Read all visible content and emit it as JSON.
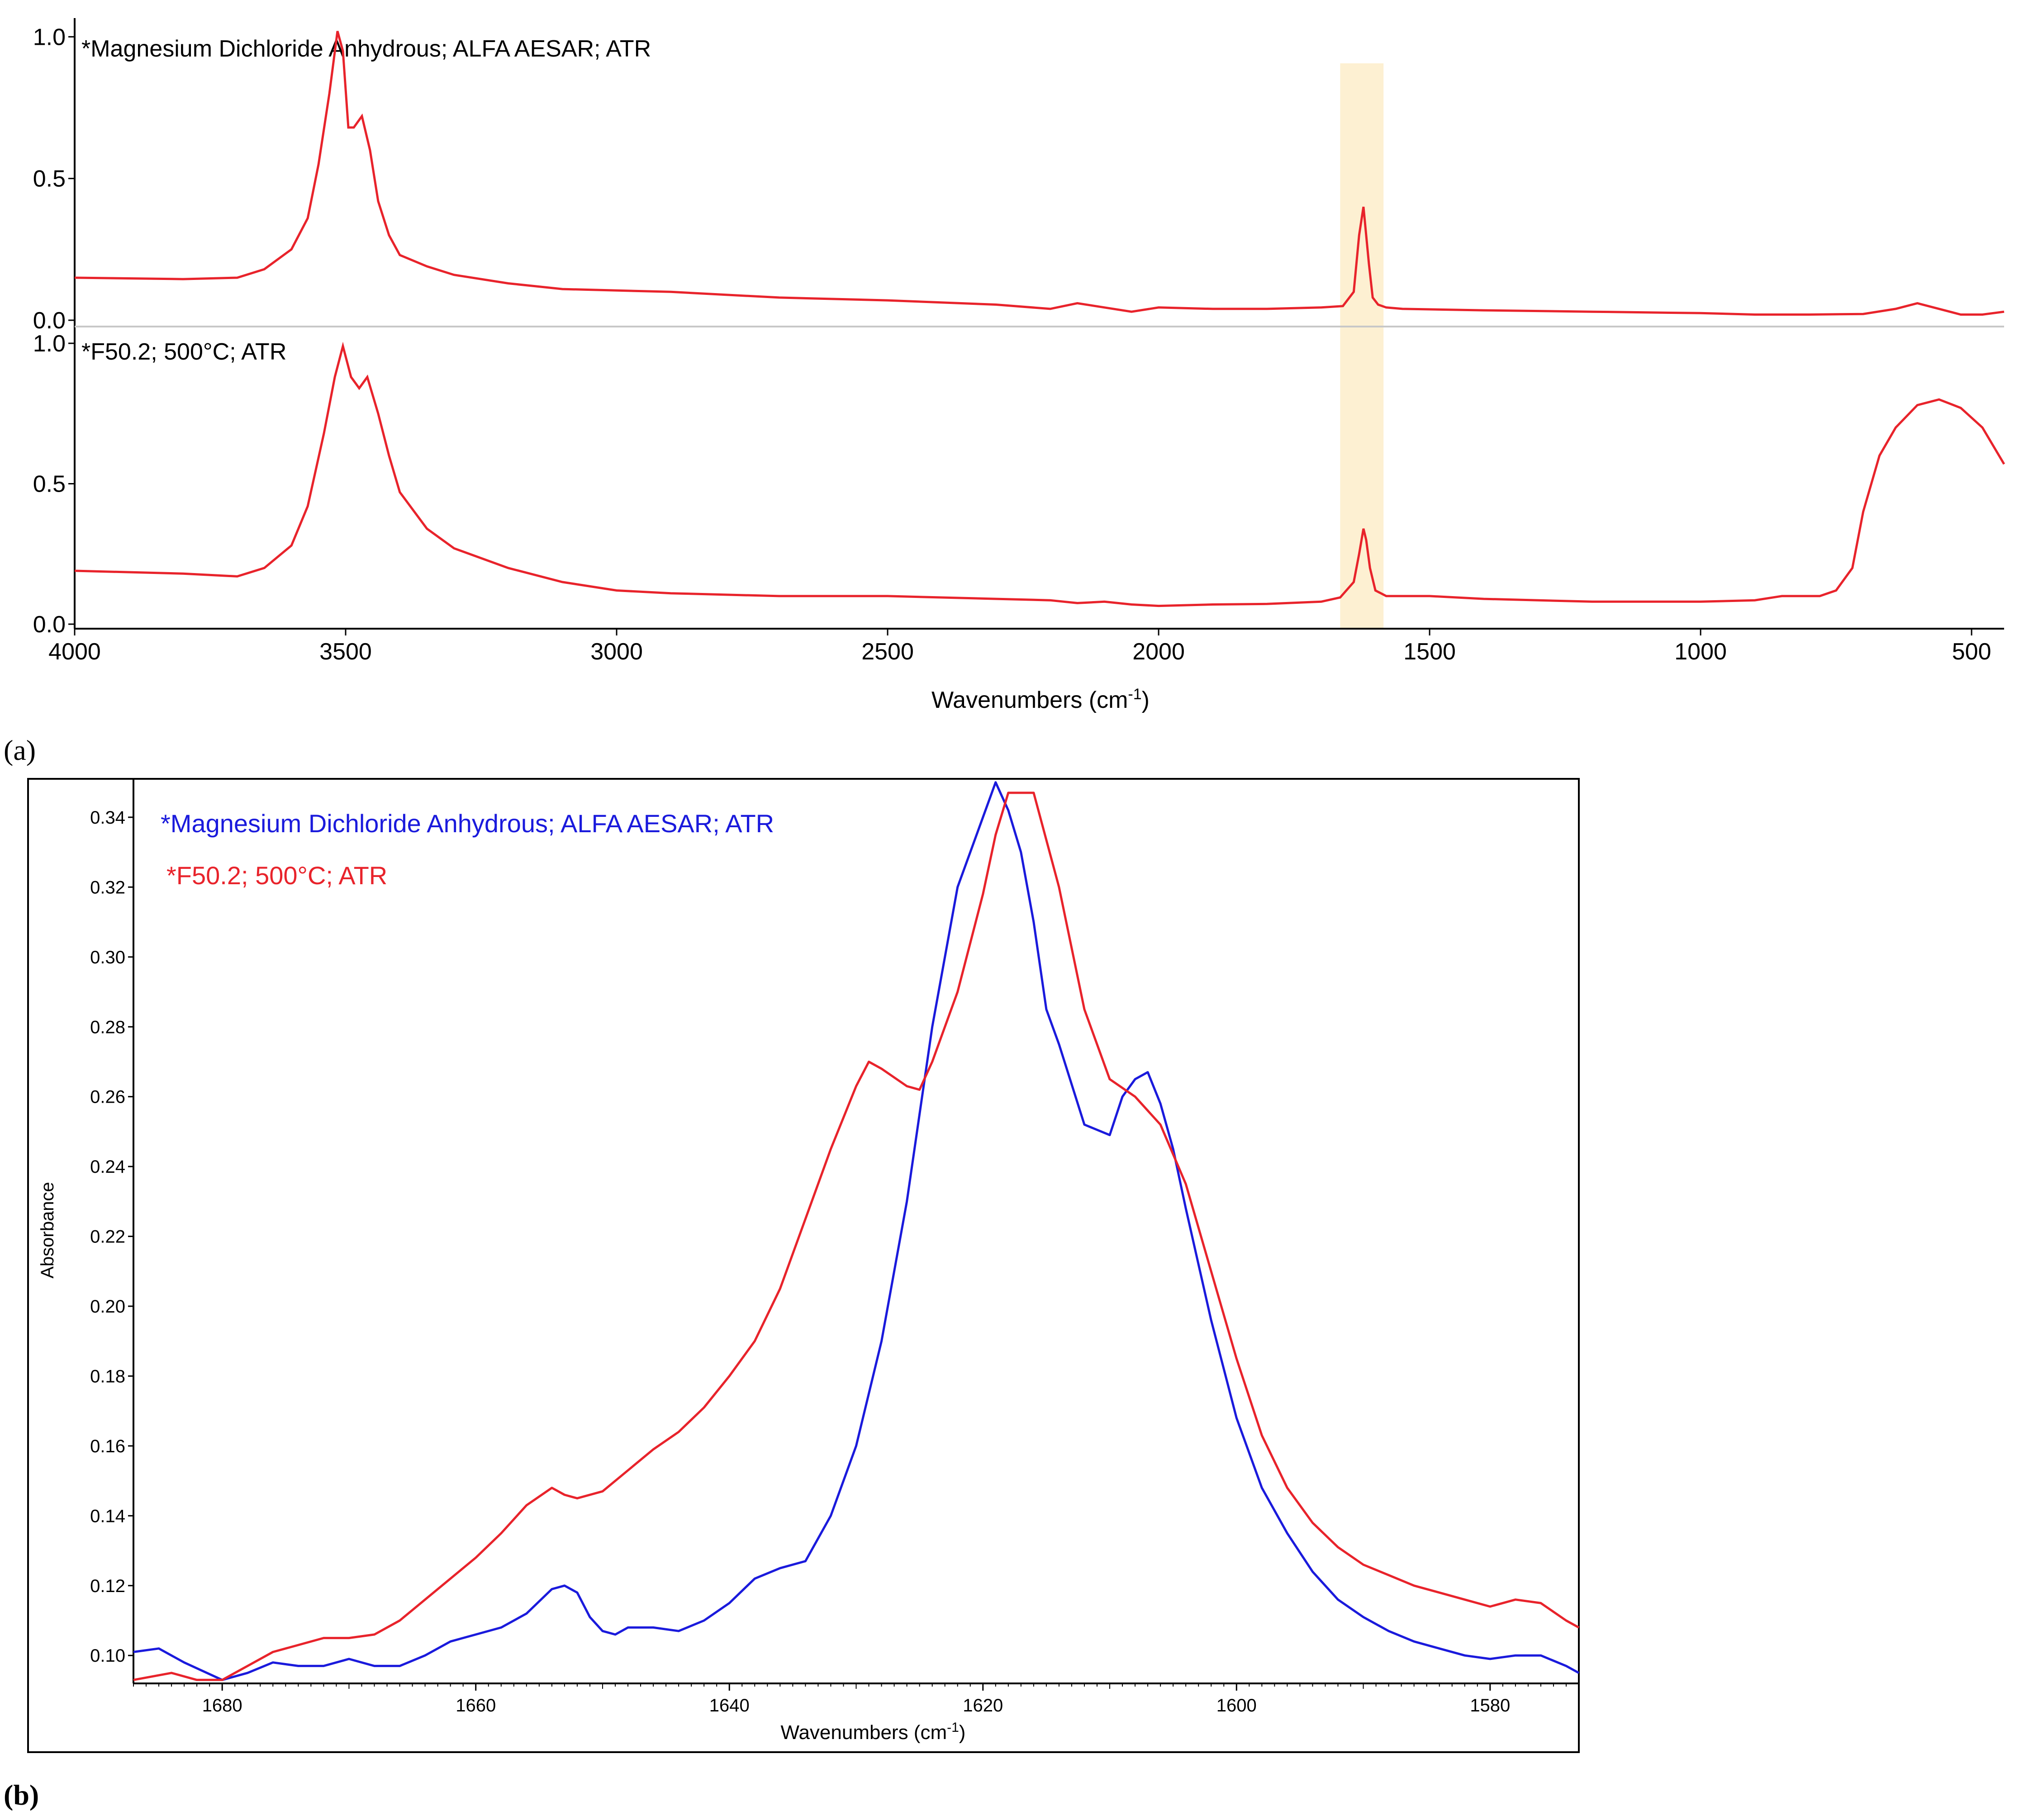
{
  "panel_a_label": "(a)",
  "panel_b_label": "(b)",
  "colors": {
    "red": "#e8232b",
    "blue": "#1a1adc",
    "highlight": "#fdf0d2"
  },
  "chart_data": [
    {
      "type": "line",
      "panel": "a",
      "xlabel": "Wavenumbers (cm-1)",
      "xlabel_main": "Wavenumbers (cm",
      "xlabel_sup": "-1",
      "xlabel_end": ")",
      "x_reversed": true,
      "xlim": [
        4000,
        440
      ],
      "x_ticks": [
        4000,
        3500,
        3000,
        2500,
        2000,
        1500,
        1000,
        500
      ],
      "x_tick_labels": [
        "4000",
        "3500",
        "3000",
        "2500",
        "2000",
        "1500",
        "1000",
        "500"
      ],
      "y_ticks": [
        0.0,
        0.5,
        1.0
      ],
      "y_tick_labels": [
        "0.0",
        "0.5",
        "1.0"
      ],
      "highlight_band": [
        1665,
        1585
      ],
      "subplots": [
        {
          "name": "*Magnesium Dichloride Anhydrous; ALFA  AESAR; ATR",
          "ylim": [
            0,
            1.05
          ],
          "x": [
            4000,
            3800,
            3700,
            3650,
            3600,
            3570,
            3550,
            3530,
            3515,
            3505,
            3495,
            3485,
            3470,
            3455,
            3440,
            3420,
            3400,
            3350,
            3300,
            3200,
            3100,
            2900,
            2700,
            2500,
            2300,
            2200,
            2150,
            2100,
            2050,
            2000,
            1900,
            1800,
            1700,
            1660,
            1640,
            1630,
            1622,
            1617,
            1612,
            1605,
            1595,
            1580,
            1550,
            1400,
            1200,
            1000,
            900,
            800,
            700,
            640,
            600,
            560,
            520,
            480,
            440
          ],
          "y": [
            0.15,
            0.145,
            0.15,
            0.18,
            0.25,
            0.36,
            0.55,
            0.8,
            1.02,
            0.95,
            0.68,
            0.68,
            0.72,
            0.6,
            0.42,
            0.3,
            0.23,
            0.19,
            0.16,
            0.13,
            0.11,
            0.1,
            0.08,
            0.07,
            0.055,
            0.04,
            0.06,
            0.045,
            0.03,
            0.045,
            0.04,
            0.04,
            0.045,
            0.05,
            0.1,
            0.3,
            0.4,
            0.3,
            0.2,
            0.08,
            0.055,
            0.045,
            0.04,
            0.035,
            0.03,
            0.025,
            0.02,
            0.02,
            0.022,
            0.04,
            0.06,
            0.04,
            0.02,
            0.02,
            0.03
          ]
        },
        {
          "name": "*F50.2; 500°C; ATR",
          "ylim": [
            0,
            1.05
          ],
          "x": [
            4000,
            3800,
            3700,
            3650,
            3600,
            3570,
            3540,
            3520,
            3505,
            3490,
            3475,
            3460,
            3440,
            3420,
            3400,
            3350,
            3300,
            3200,
            3100,
            3000,
            2900,
            2700,
            2500,
            2300,
            2200,
            2150,
            2100,
            2050,
            2000,
            1900,
            1800,
            1700,
            1665,
            1640,
            1630,
            1622,
            1617,
            1610,
            1600,
            1580,
            1500,
            1400,
            1200,
            1000,
            900,
            850,
            780,
            750,
            720,
            700,
            670,
            640,
            600,
            560,
            520,
            480,
            440
          ],
          "y": [
            0.19,
            0.18,
            0.17,
            0.2,
            0.28,
            0.42,
            0.68,
            0.88,
            0.99,
            0.88,
            0.84,
            0.88,
            0.75,
            0.6,
            0.47,
            0.34,
            0.27,
            0.2,
            0.15,
            0.12,
            0.11,
            0.1,
            0.1,
            0.09,
            0.085,
            0.075,
            0.08,
            0.07,
            0.065,
            0.07,
            0.072,
            0.08,
            0.095,
            0.15,
            0.25,
            0.34,
            0.3,
            0.2,
            0.12,
            0.1,
            0.1,
            0.09,
            0.08,
            0.08,
            0.085,
            0.1,
            0.1,
            0.12,
            0.2,
            0.4,
            0.6,
            0.7,
            0.78,
            0.8,
            0.77,
            0.7,
            0.57
          ]
        }
      ]
    },
    {
      "type": "line",
      "panel": "b",
      "xlabel": "Wavenumbers (cm-1)",
      "xlabel_main": "Wavenumbers (cm",
      "xlabel_sup": "-1",
      "xlabel_end": ")",
      "ylabel": "Absorbance",
      "x_reversed": true,
      "xlim": [
        1687,
        1573
      ],
      "ylim": [
        0.092,
        0.351
      ],
      "x_ticks": [
        1680,
        1660,
        1640,
        1620,
        1600,
        1580
      ],
      "x_tick_labels": [
        "1680",
        "1660",
        "1640",
        "1620",
        "1600",
        "1580"
      ],
      "y_ticks": [
        0.1,
        0.12,
        0.14,
        0.16,
        0.18,
        0.2,
        0.22,
        0.24,
        0.26,
        0.28,
        0.3,
        0.32,
        0.34
      ],
      "y_tick_labels": [
        "0.10",
        "0.12",
        "0.14",
        "0.16",
        "0.18",
        "0.20",
        "0.22",
        "0.24",
        "0.26",
        "0.28",
        "0.30",
        "0.32",
        "0.34"
      ],
      "series": [
        {
          "name": "*Magnesium Dichloride Anhydrous; ALFA AESAR; ATR",
          "color": "#1a1adc",
          "x": [
            1687,
            1685,
            1683,
            1680,
            1678,
            1676,
            1674,
            1672,
            1670,
            1668,
            1666,
            1664,
            1662,
            1660,
            1658,
            1656,
            1654,
            1653,
            1652,
            1651,
            1650,
            1649,
            1648,
            1646,
            1644,
            1642,
            1640,
            1638,
            1636,
            1634,
            1632,
            1630,
            1628,
            1626,
            1624,
            1622,
            1620,
            1619,
            1618,
            1617,
            1616,
            1615,
            1614,
            1612,
            1610,
            1609,
            1608,
            1607,
            1606,
            1605,
            1604,
            1603,
            1602,
            1600,
            1598,
            1596,
            1594,
            1592,
            1590,
            1588,
            1586,
            1584,
            1582,
            1580,
            1578,
            1576,
            1574,
            1573
          ],
          "y": [
            0.101,
            0.102,
            0.098,
            0.093,
            0.095,
            0.098,
            0.097,
            0.097,
            0.099,
            0.097,
            0.097,
            0.1,
            0.104,
            0.106,
            0.108,
            0.112,
            0.119,
            0.12,
            0.118,
            0.111,
            0.107,
            0.106,
            0.108,
            0.108,
            0.107,
            0.11,
            0.115,
            0.122,
            0.125,
            0.127,
            0.14,
            0.16,
            0.19,
            0.23,
            0.28,
            0.32,
            0.34,
            0.35,
            0.342,
            0.33,
            0.31,
            0.285,
            0.275,
            0.252,
            0.249,
            0.26,
            0.265,
            0.267,
            0.258,
            0.245,
            0.228,
            0.212,
            0.196,
            0.168,
            0.148,
            0.135,
            0.124,
            0.116,
            0.111,
            0.107,
            0.104,
            0.102,
            0.1,
            0.099,
            0.1,
            0.1,
            0.097,
            0.095
          ]
        },
        {
          "name": "*F50.2; 500°C; ATR",
          "color": "#e8232b",
          "x": [
            1687,
            1684,
            1682,
            1680,
            1678,
            1676,
            1674,
            1672,
            1670,
            1668,
            1666,
            1664,
            1662,
            1660,
            1658,
            1656,
            1654,
            1653,
            1652,
            1650,
            1648,
            1646,
            1644,
            1642,
            1640,
            1638,
            1636,
            1634,
            1632,
            1630,
            1629,
            1628,
            1626,
            1625,
            1624,
            1622,
            1620,
            1619,
            1618,
            1617,
            1616,
            1614,
            1612,
            1610,
            1608,
            1606,
            1604,
            1602,
            1600,
            1598,
            1596,
            1594,
            1592,
            1590,
            1588,
            1586,
            1584,
            1582,
            1580,
            1578,
            1576,
            1574,
            1573
          ],
          "y": [
            0.093,
            0.095,
            0.093,
            0.093,
            0.097,
            0.101,
            0.103,
            0.105,
            0.105,
            0.106,
            0.11,
            0.116,
            0.122,
            0.128,
            0.135,
            0.143,
            0.148,
            0.146,
            0.145,
            0.147,
            0.153,
            0.159,
            0.164,
            0.171,
            0.18,
            0.19,
            0.205,
            0.225,
            0.245,
            0.263,
            0.27,
            0.268,
            0.263,
            0.262,
            0.27,
            0.29,
            0.318,
            0.335,
            0.347,
            0.347,
            0.347,
            0.32,
            0.285,
            0.265,
            0.26,
            0.252,
            0.235,
            0.21,
            0.185,
            0.163,
            0.148,
            0.138,
            0.131,
            0.126,
            0.123,
            0.12,
            0.118,
            0.116,
            0.114,
            0.116,
            0.115,
            0.11,
            0.108
          ]
        }
      ]
    }
  ]
}
